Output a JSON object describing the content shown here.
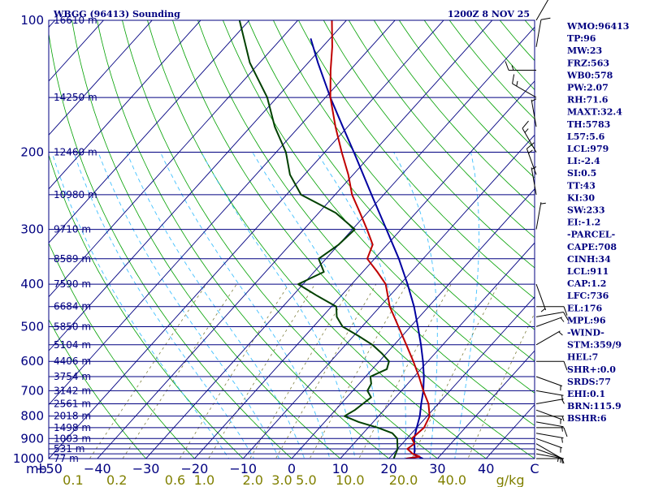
{
  "chart_data": {
    "type": "skew-t sounding",
    "title": "WBGG (96413) Sounding",
    "time": "1200Z  8 NOV 25",
    "ylabel": "mb",
    "xlabel": "°C",
    "pressure_range": [
      1000,
      100
    ],
    "temperature_range": [
      -50,
      50
    ],
    "pressure_ticks": [
      {
        "p": 100,
        "label": "100"
      },
      {
        "p": 200,
        "label": "200"
      },
      {
        "p": 300,
        "label": "300"
      },
      {
        "p": 400,
        "label": "400"
      },
      {
        "p": 500,
        "label": "500"
      },
      {
        "p": 600,
        "label": "600"
      },
      {
        "p": 700,
        "label": "700"
      },
      {
        "p": 800,
        "label": "800"
      },
      {
        "p": 900,
        "label": "900"
      },
      {
        "p": 1000,
        "label": "1000"
      }
    ],
    "temperature_ticks": [
      {
        "t": -50,
        "label": "−50"
      },
      {
        "t": -40,
        "label": "−40"
      },
      {
        "t": -30,
        "label": "−30"
      },
      {
        "t": -20,
        "label": "−20"
      },
      {
        "t": -10,
        "label": "−10"
      },
      {
        "t": 0,
        "label": "0"
      },
      {
        "t": 10,
        "label": "10"
      },
      {
        "t": 20,
        "label": "20"
      },
      {
        "t": 30,
        "label": "30"
      },
      {
        "t": 40,
        "label": "40"
      },
      {
        "t": 50,
        "label": "C"
      }
    ],
    "mixing_ratio_labels": [
      {
        "t": -45,
        "label": "0.1"
      },
      {
        "t": -36,
        "label": "0.2"
      },
      {
        "t": -24,
        "label": "0.6"
      },
      {
        "t": -18,
        "label": "1.0"
      },
      {
        "t": -8,
        "label": "2.0"
      },
      {
        "t": -2,
        "label": "3.0"
      },
      {
        "t": 3,
        "label": "5.0"
      },
      {
        "t": 12,
        "label": "10.0"
      },
      {
        "t": 23,
        "label": "20.0"
      },
      {
        "t": 33,
        "label": "40.0"
      },
      {
        "t": 45,
        "label": "g/kg"
      }
    ],
    "height_labels": [
      {
        "p": 100,
        "label": "16610 m"
      },
      {
        "p": 150,
        "label": "14250 m"
      },
      {
        "p": 200,
        "label": "12460 m"
      },
      {
        "p": 250,
        "label": "10980 m"
      },
      {
        "p": 300,
        "label": "9710 m"
      },
      {
        "p": 350,
        "label": "8589 m"
      },
      {
        "p": 400,
        "label": "7590 m"
      },
      {
        "p": 450,
        "label": "6684 m"
      },
      {
        "p": 500,
        "label": "5850 m"
      },
      {
        "p": 550,
        "label": "5104 m"
      },
      {
        "p": 600,
        "label": "4406 m"
      },
      {
        "p": 650,
        "label": "3754 m"
      },
      {
        "p": 700,
        "label": "3142 m"
      },
      {
        "p": 750,
        "label": "2561 m"
      },
      {
        "p": 800,
        "label": "2018 m"
      },
      {
        "p": 850,
        "label": "1498 m"
      },
      {
        "p": 900,
        "label": "1003 m"
      },
      {
        "p": 950,
        "label": "531 m"
      },
      {
        "p": 1000,
        "label": "77 m"
      }
    ],
    "isobars": [
      100,
      150,
      200,
      250,
      300,
      350,
      400,
      450,
      500,
      550,
      600,
      650,
      700,
      750,
      800,
      850,
      900,
      925,
      950,
      975,
      1000
    ],
    "series": [
      {
        "name": "Temperature",
        "color": "#c00000",
        "points": [
          [
            1000,
            23.5
          ],
          [
            990,
            26.0
          ],
          [
            975,
            24.0
          ],
          [
            950,
            22.0
          ],
          [
            925,
            22.5
          ],
          [
            900,
            21.0
          ],
          [
            850,
            21.5
          ],
          [
            800,
            20.5
          ],
          [
            750,
            18.0
          ],
          [
            700,
            14.5
          ],
          [
            650,
            11.0
          ],
          [
            600,
            7.0
          ],
          [
            550,
            2.5
          ],
          [
            500,
            -2.5
          ],
          [
            450,
            -8.0
          ],
          [
            400,
            -13.0
          ],
          [
            375,
            -17.0
          ],
          [
            350,
            -21.5
          ],
          [
            325,
            -23.0
          ],
          [
            300,
            -27.0
          ],
          [
            275,
            -31.5
          ],
          [
            250,
            -36.5
          ],
          [
            225,
            -41.0
          ],
          [
            200,
            -46.5
          ],
          [
            175,
            -52.5
          ],
          [
            150,
            -59.0
          ],
          [
            130,
            -64.0
          ],
          [
            115,
            -68.0
          ],
          [
            100,
            -73.0
          ]
        ]
      },
      {
        "name": "Dewpoint",
        "color": "#004000",
        "points": [
          [
            1000,
            21.0
          ],
          [
            975,
            20.5
          ],
          [
            950,
            20.0
          ],
          [
            925,
            19.0
          ],
          [
            900,
            18.0
          ],
          [
            875,
            16.0
          ],
          [
            850,
            12.0
          ],
          [
            825,
            7.0
          ],
          [
            800,
            3.0
          ],
          [
            775,
            4.0
          ],
          [
            750,
            4.5
          ],
          [
            725,
            5.0
          ],
          [
            700,
            3.0
          ],
          [
            675,
            2.5
          ],
          [
            650,
            1.0
          ],
          [
            625,
            3.0
          ],
          [
            600,
            2.0
          ],
          [
            575,
            -1.0
          ],
          [
            550,
            -4.5
          ],
          [
            525,
            -9.0
          ],
          [
            500,
            -14.0
          ],
          [
            475,
            -17.0
          ],
          [
            450,
            -19.0
          ],
          [
            425,
            -25.0
          ],
          [
            400,
            -31.0
          ],
          [
            375,
            -28.0
          ],
          [
            350,
            -31.5
          ],
          [
            325,
            -30.0
          ],
          [
            300,
            -29.5
          ],
          [
            275,
            -36.5
          ],
          [
            250,
            -47.0
          ],
          [
            225,
            -53.0
          ],
          [
            200,
            -58.0
          ],
          [
            175,
            -65.0
          ],
          [
            150,
            -72.0
          ],
          [
            125,
            -82.0
          ],
          [
            100,
            -92.0
          ]
        ]
      },
      {
        "name": "Parcel",
        "color": "#0000a0",
        "points": [
          [
            1000,
            27.0
          ],
          [
            980,
            24.5
          ],
          [
            950,
            23.5
          ],
          [
            925,
            22.5
          ],
          [
            900,
            21.5
          ],
          [
            850,
            20.0
          ],
          [
            800,
            18.5
          ],
          [
            750,
            16.5
          ],
          [
            700,
            14.5
          ],
          [
            650,
            12.0
          ],
          [
            600,
            9.0
          ],
          [
            550,
            5.5
          ],
          [
            500,
            1.5
          ],
          [
            450,
            -3.0
          ],
          [
            400,
            -8.5
          ],
          [
            350,
            -15.0
          ],
          [
            300,
            -23.0
          ],
          [
            250,
            -32.5
          ],
          [
            200,
            -44.0
          ],
          [
            175,
            -51.0
          ],
          [
            150,
            -59.0
          ],
          [
            125,
            -68.0
          ],
          [
            110,
            -74.0
          ]
        ]
      }
    ],
    "wind_barbs": [
      {
        "p": 1000,
        "dir": 90,
        "kt": 5
      },
      {
        "p": 975,
        "dir": 100,
        "kt": 5
      },
      {
        "p": 950,
        "dir": 110,
        "kt": 5
      },
      {
        "p": 925,
        "dir": 120,
        "kt": 5
      },
      {
        "p": 900,
        "dir": 110,
        "kt": 5
      },
      {
        "p": 875,
        "dir": 100,
        "kt": 5
      },
      {
        "p": 850,
        "dir": 90,
        "kt": 10
      },
      {
        "p": 825,
        "dir": 100,
        "kt": 5
      },
      {
        "p": 800,
        "dir": 90,
        "kt": 5
      },
      {
        "p": 775,
        "dir": 110,
        "kt": 5
      },
      {
        "p": 750,
        "dir": 80,
        "kt": 5
      },
      {
        "p": 700,
        "dir": 100,
        "kt": 5
      },
      {
        "p": 650,
        "dir": 110,
        "kt": 5
      },
      {
        "p": 600,
        "dir": 90,
        "kt": 10
      },
      {
        "p": 550,
        "dir": 60,
        "kt": 5
      },
      {
        "p": 500,
        "dir": 70,
        "kt": 5
      },
      {
        "p": 475,
        "dir": 80,
        "kt": 10
      },
      {
        "p": 450,
        "dir": 90,
        "kt": 10
      },
      {
        "p": 400,
        "dir": 160,
        "kt": 5
      },
      {
        "p": 300,
        "dir": 10,
        "kt": 5
      },
      {
        "p": 250,
        "dir": 350,
        "kt": 5
      },
      {
        "p": 225,
        "dir": 340,
        "kt": 15
      },
      {
        "p": 200,
        "dir": 330,
        "kt": 15
      },
      {
        "p": 175,
        "dir": 350,
        "kt": 5
      },
      {
        "p": 150,
        "dir": 300,
        "kt": 15
      },
      {
        "p": 130,
        "dir": 270,
        "kt": 15
      },
      {
        "p": 115,
        "dir": 10,
        "kt": 10
      },
      {
        "p": 100,
        "dir": 30,
        "kt": 10
      }
    ],
    "indices": [
      "WMO:96413",
      "TP:96",
      "MW:23",
      "FRZ:563",
      "WB0:578",
      "PW:2.07",
      "RH:71.6",
      "MAXT:32.4",
      "TH:5783",
      "L57:5.6",
      "LCL:979",
      "LI:-2.4",
      "SI:0.5",
      "TT:43",
      "KI:30",
      "SW:233",
      "EI:-1.2",
      "-PARCEL-",
      "CAPE:708",
      "CINH:34",
      "LCL:911",
      "CAP:1.2",
      "LFC:736",
      "EL:176",
      "MPL:96",
      "-WIND-",
      "STM:359/9",
      "HEL:7",
      "SHR+:0.0",
      "SRDS:77",
      "EHI:0.1",
      "BRN:115.9",
      "BSHR:6"
    ]
  },
  "colors": {
    "border": "#000080",
    "isobar": "#000080",
    "isotherm": "#000080",
    "dry_adiabat": "#00a000",
    "moist_adiabat": "#40c0ff",
    "mixing_ratio": "#808040",
    "temperature": "#c00000",
    "dewpoint": "#004000",
    "parcel": "#0000a0",
    "text": "#000080",
    "mix_text": "#808000"
  }
}
